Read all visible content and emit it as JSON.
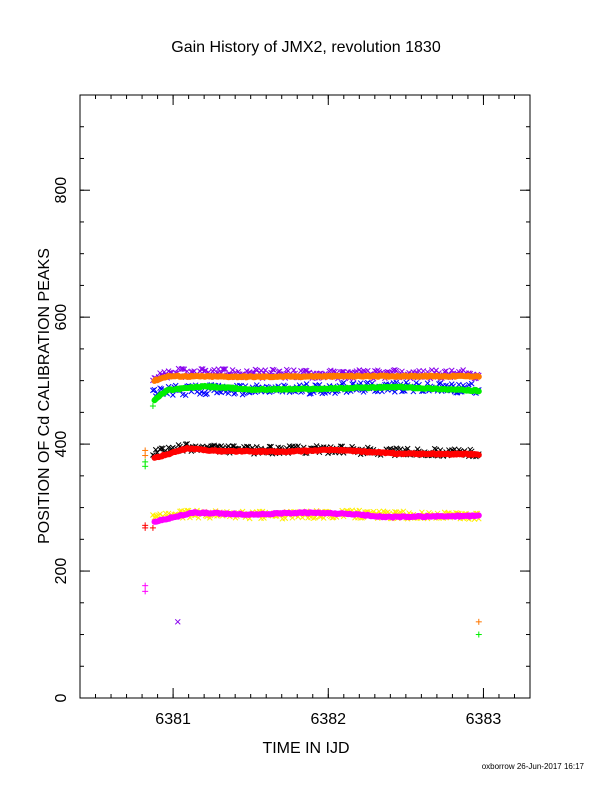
{
  "chart_data": {
    "type": "scatter",
    "title": "Gain History of JMX2, revolution 1830",
    "xlabel": "TIME IN IJD",
    "ylabel": "POSITION OF Cd CALIBRATION PEAKS",
    "xlim": [
      6380.4,
      6383.3
    ],
    "ylim": [
      0,
      950
    ],
    "x_ticks": [
      6381,
      6382,
      6383
    ],
    "x_tick_labels": [
      "6381",
      "6382",
      "6383"
    ],
    "x_minor_step": 0.1,
    "y_ticks": [
      0,
      200,
      400,
      600,
      800
    ],
    "y_tick_labels": [
      "0",
      "200",
      "400",
      "600",
      "800"
    ],
    "y_minor_step": 50,
    "grid": false,
    "legend": "none",
    "footer": "oxborrow 26-Jun-2017 16:17",
    "series": [
      {
        "color": "#8800ee",
        "marker": "x",
        "x_range": [
          6380.87,
          6382.97
        ],
        "profile": [
          [
            0,
            505
          ],
          [
            0.08,
            512
          ],
          [
            0.3,
            511
          ],
          [
            0.6,
            510
          ],
          [
            1,
            510
          ]
        ],
        "scatter": 7,
        "stray": [
          [
            6381.03,
            120
          ]
        ]
      },
      {
        "color": "#ff7700",
        "marker": "solid",
        "x_range": [
          6380.88,
          6382.97
        ],
        "profile": [
          [
            0,
            500
          ],
          [
            0.04,
            507
          ],
          [
            0.3,
            506
          ],
          [
            0.6,
            507
          ],
          [
            1,
            507
          ]
        ]
      },
      {
        "color": "#0000ff",
        "marker": "x",
        "x_range": [
          6380.87,
          6382.97
        ],
        "profile": [
          [
            0,
            480
          ],
          [
            0.08,
            485
          ],
          [
            0.4,
            486
          ],
          [
            0.7,
            490
          ],
          [
            1,
            487
          ]
        ],
        "scatter": 8
      },
      {
        "color": "#00ee00",
        "marker": "solid",
        "x_range": [
          6380.88,
          6382.97
        ],
        "profile": [
          [
            0,
            470
          ],
          [
            0.04,
            485
          ],
          [
            0.15,
            491
          ],
          [
            0.3,
            486
          ],
          [
            0.5,
            487
          ],
          [
            0.75,
            490
          ],
          [
            1,
            484
          ]
        ]
      },
      {
        "color": "#000000",
        "marker": "x",
        "x_range": [
          6380.87,
          6382.97
        ],
        "profile": [
          [
            0,
            385
          ],
          [
            0.1,
            395
          ],
          [
            0.3,
            390
          ],
          [
            0.5,
            392
          ],
          [
            0.75,
            388
          ],
          [
            1,
            386
          ]
        ],
        "scatter": 6
      },
      {
        "color": "#ff0000",
        "marker": "solid",
        "x_range": [
          6380.88,
          6382.97
        ],
        "profile": [
          [
            0,
            378
          ],
          [
            0.1,
            393
          ],
          [
            0.2,
            389
          ],
          [
            0.4,
            388
          ],
          [
            0.55,
            391
          ],
          [
            0.75,
            385
          ],
          [
            1,
            384
          ]
        ]
      },
      {
        "color": "#ffee00",
        "marker": "x",
        "x_range": [
          6380.87,
          6382.97
        ],
        "profile": [
          [
            0,
            285
          ],
          [
            0.1,
            290
          ],
          [
            0.4,
            288
          ],
          [
            0.6,
            290
          ],
          [
            1,
            286
          ]
        ],
        "scatter": 6
      },
      {
        "color": "#ff00ff",
        "marker": "solid",
        "x_range": [
          6380.88,
          6382.97
        ],
        "profile": [
          [
            0,
            278
          ],
          [
            0.12,
            292
          ],
          [
            0.3,
            289
          ],
          [
            0.45,
            292
          ],
          [
            0.6,
            290
          ],
          [
            0.72,
            285
          ],
          [
            1,
            287
          ]
        ]
      }
    ],
    "plus_points": [
      {
        "color": "#ff7700",
        "x": 6380.82,
        "y": 390
      },
      {
        "color": "#ff7700",
        "x": 6380.82,
        "y": 382
      },
      {
        "color": "#00ee00",
        "x": 6380.82,
        "y": 365
      },
      {
        "color": "#00ee00",
        "x": 6380.82,
        "y": 372
      },
      {
        "color": "#ff0000",
        "x": 6380.82,
        "y": 272
      },
      {
        "color": "#ff0000",
        "x": 6380.82,
        "y": 268
      },
      {
        "color": "#ff00ff",
        "x": 6380.82,
        "y": 177
      },
      {
        "color": "#ff00ff",
        "x": 6380.82,
        "y": 168
      },
      {
        "color": "#00ee00",
        "x": 6380.87,
        "y": 460
      },
      {
        "color": "#ff0000",
        "x": 6380.87,
        "y": 268
      },
      {
        "color": "#ff7700",
        "x": 6382.97,
        "y": 120
      },
      {
        "color": "#00ee00",
        "x": 6382.97,
        "y": 100
      }
    ]
  }
}
